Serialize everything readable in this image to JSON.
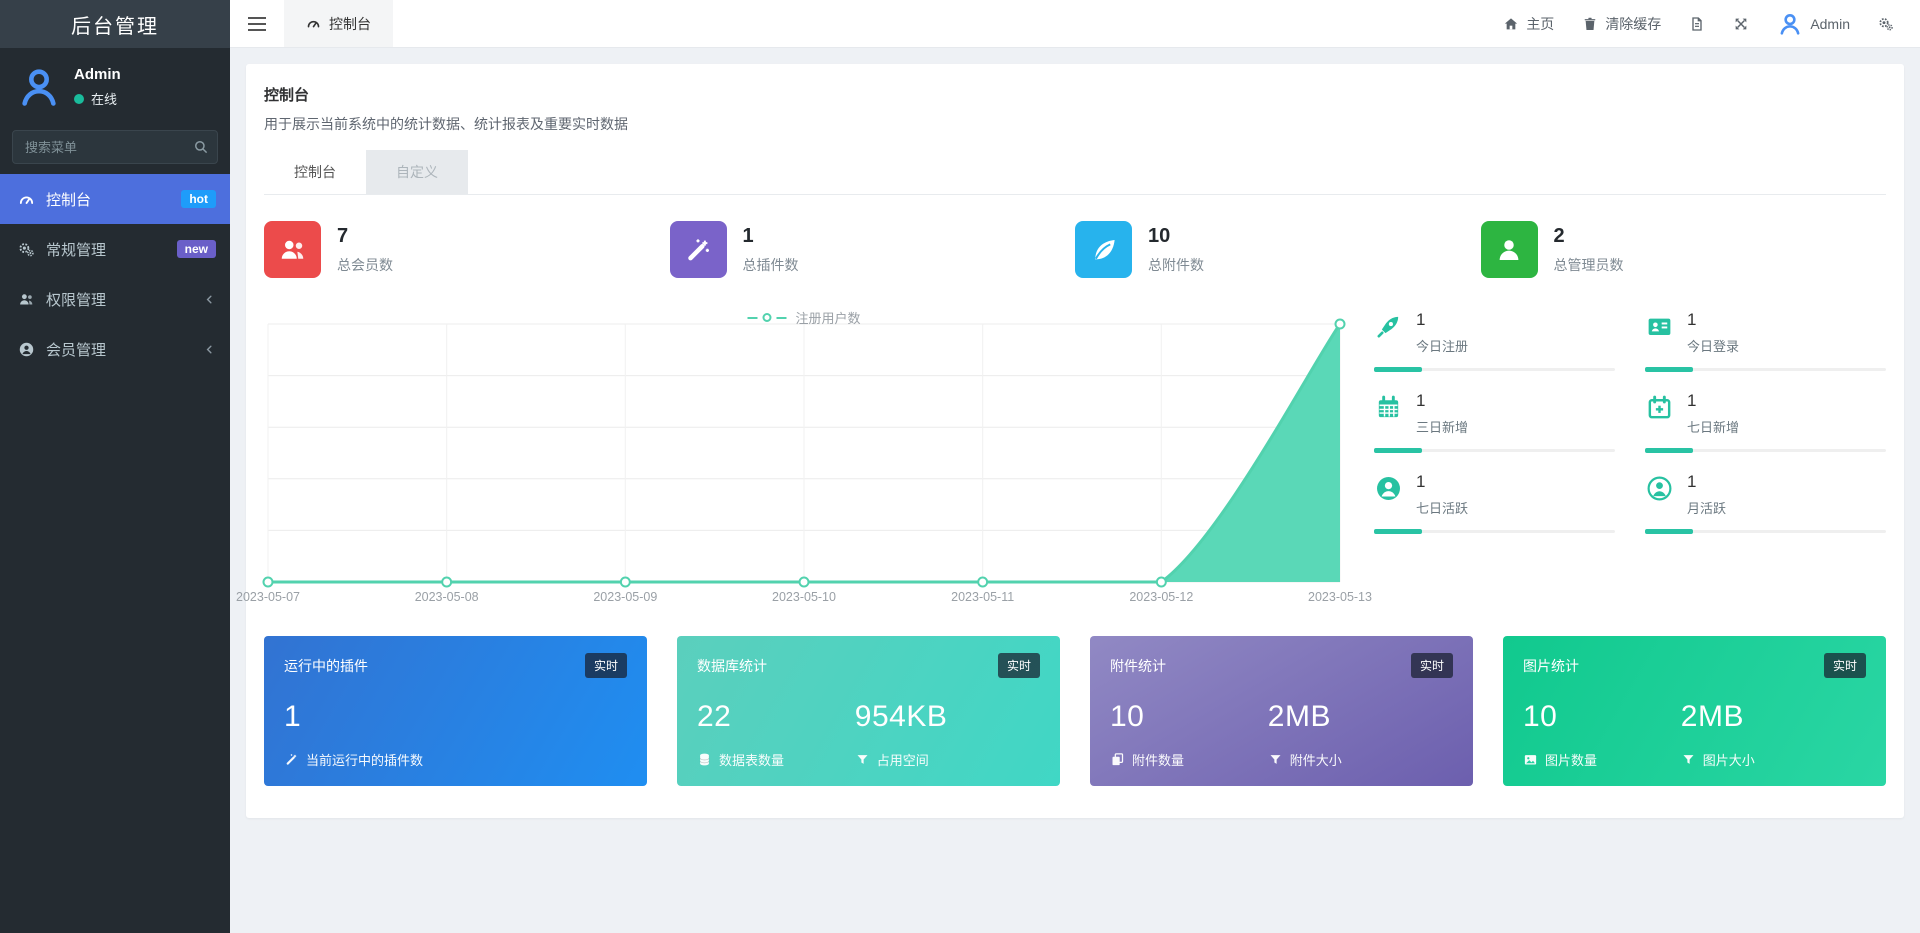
{
  "sidebar": {
    "brand": "后台管理",
    "user": {
      "name": "Admin",
      "status": "在线"
    },
    "search_placeholder": "搜索菜单",
    "items": [
      {
        "label": "控制台",
        "badge": "hot",
        "badge_color": "#1e9cfa",
        "active": true
      },
      {
        "label": "常规管理",
        "badge": "new",
        "badge_color": "#6a5fc8",
        "active": false
      },
      {
        "label": "权限管理",
        "badge": "",
        "active": false
      },
      {
        "label": "会员管理",
        "badge": "",
        "active": false
      }
    ],
    "active_color": "#4d6fdd"
  },
  "header": {
    "tab": "控制台",
    "home": "主页",
    "clear_cache": "清除缓存",
    "user": "Admin"
  },
  "page": {
    "title": "控制台",
    "subtitle": "用于展示当前系统中的统计数据、统计报表及重要实时数据",
    "tabs": [
      {
        "label": "控制台",
        "active": true
      },
      {
        "label": "自定义",
        "active": false
      }
    ]
  },
  "stats": [
    {
      "value": "7",
      "label": "总会员数",
      "color": "#ec4b4b",
      "icon": "users-icon"
    },
    {
      "value": "1",
      "label": "总插件数",
      "color": "#7a63c9",
      "icon": "magic-wand-icon"
    },
    {
      "value": "10",
      "label": "总附件数",
      "color": "#27b3ed",
      "icon": "leaf-icon"
    },
    {
      "value": "2",
      "label": "总管理员数",
      "color": "#2db541",
      "icon": "user-icon"
    }
  ],
  "chart_data": {
    "type": "area",
    "x": [
      "2023-05-07",
      "2023-05-08",
      "2023-05-09",
      "2023-05-10",
      "2023-05-11",
      "2023-05-12",
      "2023-05-13"
    ],
    "series": [
      {
        "name": "注册用户数",
        "values": [
          0,
          0,
          0,
          0,
          0,
          0,
          7
        ]
      }
    ],
    "title": "",
    "xlabel": "",
    "ylabel": "",
    "ylim": [
      0,
      7
    ],
    "grid": true,
    "legend": [
      "注册用户数"
    ],
    "legend_position": "top-center",
    "smooth": true,
    "line_color": "#52d2ae",
    "fill_color": "#5ad8b7",
    "marker": "hollow-circle"
  },
  "mini_stats": [
    {
      "value": "1",
      "label": "今日注册",
      "icon": "rocket-icon"
    },
    {
      "value": "1",
      "label": "今日登录",
      "icon": "id-card-icon"
    },
    {
      "value": "1",
      "label": "三日新增",
      "icon": "calendar-icon"
    },
    {
      "value": "1",
      "label": "七日新增",
      "icon": "calendar-plus-icon"
    },
    {
      "value": "1",
      "label": "七日活跃",
      "icon": "user-circle-icon"
    },
    {
      "value": "1",
      "label": "月活跃",
      "icon": "user-circle-outline-icon"
    }
  ],
  "realtime_cards": [
    {
      "title": "运行中的插件",
      "badge": "实时",
      "value1": "1",
      "value2": "",
      "foot1": "当前运行中的插件数",
      "foot2": "",
      "background": "linear-gradient(120deg,#3273d2,#1f8ef1)"
    },
    {
      "title": "数据库统计",
      "badge": "实时",
      "value1": "22",
      "value2": "954KB",
      "foot1": "数据表数量",
      "foot2": "占用空间",
      "background": "linear-gradient(120deg,#5bcfbd,#40d7c5)"
    },
    {
      "title": "附件统计",
      "badge": "实时",
      "value1": "10",
      "value2": "2MB",
      "foot1": "附件数量",
      "foot2": "附件大小",
      "background": "linear-gradient(150deg,#9189c4,#6c5fae)"
    },
    {
      "title": "图片统计",
      "badge": "实时",
      "value1": "10",
      "value2": "2MB",
      "foot1": "图片数量",
      "foot2": "图片大小",
      "background": "linear-gradient(120deg,#11c98e,#2ad6a4)"
    }
  ]
}
